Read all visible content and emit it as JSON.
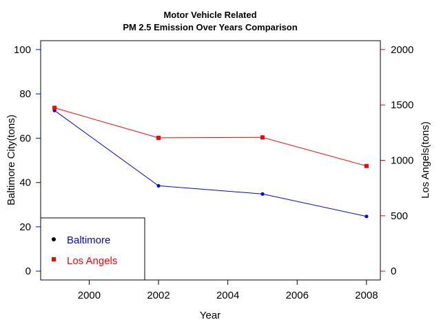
{
  "chart_data": {
    "type": "line",
    "title": "Motor Vehicle Related",
    "subtitle": "PM 2.5 Emission Over Years Comparison",
    "xlabel": "Year",
    "ylabel_left": "Baltimore City(tons)",
    "ylabel_right": "Los Angels(tons)",
    "x": [
      1999,
      2002,
      2005,
      2008
    ],
    "xlim": [
      1998.6,
      2008.4
    ],
    "xticks": [
      2000,
      2002,
      2004,
      2006,
      2008
    ],
    "ylim_left": [
      -4,
      104
    ],
    "yticks_left": [
      0,
      20,
      40,
      60,
      80,
      100
    ],
    "ylim_right": [
      -80,
      2080
    ],
    "yticks_right": [
      0,
      500,
      1000,
      1500,
      2000
    ],
    "grid": false,
    "legend_position": "bottom-left",
    "series": [
      {
        "name": "Baltimore",
        "axis": "left",
        "color": "#0000ff",
        "marker": "circle",
        "values": [
          72.5,
          38.5,
          34.8,
          24.7
        ]
      },
      {
        "name": "Los Angels",
        "axis": "right",
        "color": "#ff0000",
        "marker": "square",
        "values": [
          1474,
          1203,
          1207,
          949
        ]
      }
    ]
  }
}
